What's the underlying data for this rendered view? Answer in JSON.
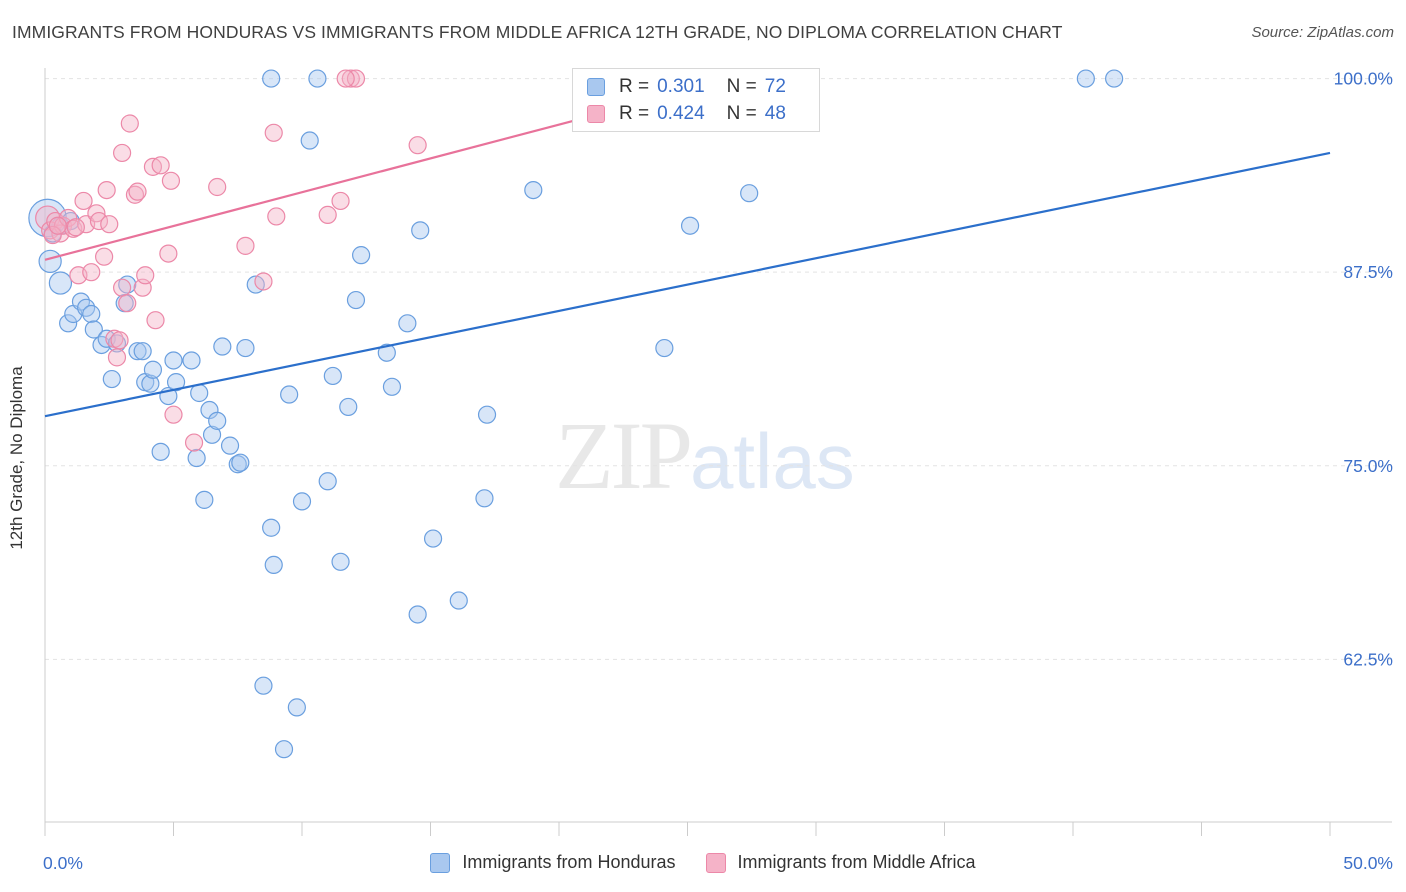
{
  "header": {
    "title": "IMMIGRANTS FROM HONDURAS VS IMMIGRANTS FROM MIDDLE AFRICA 12TH GRADE, NO DIPLOMA CORRELATION CHART",
    "source": "Source: ZipAtlas.com"
  },
  "watermark": {
    "zip": "ZIP",
    "atlas": "atlas"
  },
  "legend_top": {
    "rows": [
      {
        "r_label": "R =",
        "r_value": "0.301",
        "n_label": "N =",
        "n_value": "72"
      },
      {
        "r_label": "R =",
        "r_value": "0.424",
        "n_label": "N =",
        "n_value": "48"
      }
    ]
  },
  "colors": {
    "honduras_fill": "#a9c8ef",
    "honduras_stroke": "#6a9fdf",
    "honduras_line": "#2b6fcb",
    "africa_fill": "#f5b3c8",
    "africa_stroke": "#ec88a8",
    "africa_line": "#e8729a",
    "tick_text": "#3c6fc9",
    "grid": "#e3e3e3"
  },
  "chart_data": {
    "type": "scatter",
    "xlabel": "",
    "ylabel": "12th Grade, No Diploma",
    "xlim": [
      0,
      50
    ],
    "ylim": [
      52,
      101.2
    ],
    "x_ticks": [
      0,
      5,
      10,
      15,
      20,
      25,
      30,
      35,
      40,
      45,
      50
    ],
    "x_tick_labels": [
      {
        "value": 0,
        "label": "0.0%"
      },
      {
        "value": 50,
        "label": "50.0%"
      }
    ],
    "y_ticks": [
      {
        "value": 100,
        "label": "100.0%"
      },
      {
        "value": 87.5,
        "label": "87.5%"
      },
      {
        "value": 75,
        "label": "75.0%"
      },
      {
        "value": 62.5,
        "label": "62.5%"
      }
    ],
    "grid": "horizontal dashed",
    "legend": "bottom-center",
    "series": [
      {
        "name": "Immigrants from Honduras",
        "r": 0.301,
        "n": 72,
        "trend": {
          "x": [
            0,
            50
          ],
          "y": [
            78.2,
            95.2
          ]
        },
        "points": [
          [
            0.1,
            91.0,
            2.2
          ],
          [
            0.2,
            88.2,
            1.3
          ],
          [
            0.6,
            86.8,
            1.3
          ],
          [
            0.9,
            84.2,
            1.0
          ],
          [
            1.1,
            84.8,
            1.0
          ],
          [
            1.4,
            85.6,
            1.0
          ],
          [
            1.6,
            85.2,
            1.0
          ],
          [
            1.8,
            84.8,
            1.0
          ],
          [
            1.9,
            83.8,
            1.0
          ],
          [
            2.2,
            82.8,
            1.0
          ],
          [
            2.4,
            83.2,
            1.0
          ],
          [
            2.6,
            80.6,
            1.0
          ],
          [
            2.8,
            82.9,
            1.0
          ],
          [
            3.1,
            85.5,
            1.0
          ],
          [
            3.2,
            86.7,
            1.0
          ],
          [
            3.6,
            82.4,
            1.0
          ],
          [
            3.8,
            82.4,
            1.0
          ],
          [
            3.9,
            80.4,
            1.0
          ],
          [
            4.1,
            80.3,
            1.0
          ],
          [
            4.2,
            81.2,
            1.0
          ],
          [
            4.5,
            75.9,
            1.0
          ],
          [
            4.8,
            79.5,
            1.0
          ],
          [
            5.0,
            81.8,
            1.0
          ],
          [
            5.1,
            80.4,
            1.0
          ],
          [
            5.7,
            81.8,
            1.0
          ],
          [
            5.9,
            75.5,
            1.0
          ],
          [
            6.0,
            79.7,
            1.0
          ],
          [
            6.2,
            72.8,
            1.0
          ],
          [
            6.4,
            78.6,
            1.0
          ],
          [
            6.5,
            77.0,
            1.0
          ],
          [
            6.7,
            77.9,
            1.0
          ],
          [
            6.9,
            82.7,
            1.0
          ],
          [
            7.2,
            76.3,
            1.0
          ],
          [
            7.5,
            75.1,
            1.0
          ],
          [
            7.6,
            75.2,
            1.0
          ],
          [
            7.8,
            82.6,
            1.0
          ],
          [
            8.2,
            86.7,
            1.0
          ],
          [
            8.5,
            60.8,
            1.0
          ],
          [
            8.8,
            71.0,
            1.0
          ],
          [
            8.9,
            68.6,
            1.0
          ],
          [
            9.3,
            56.7,
            1.0
          ],
          [
            9.5,
            79.6,
            1.0
          ],
          [
            9.8,
            59.4,
            1.0
          ],
          [
            10.0,
            72.7,
            1.0
          ],
          [
            10.3,
            96.0,
            1.0
          ],
          [
            11.0,
            74.0,
            1.0
          ],
          [
            11.2,
            80.8,
            1.0
          ],
          [
            11.5,
            68.8,
            1.0
          ],
          [
            11.8,
            78.8,
            1.0
          ],
          [
            12.1,
            85.7,
            1.0
          ],
          [
            12.3,
            88.6,
            1.0
          ],
          [
            13.3,
            82.3,
            1.0
          ],
          [
            13.5,
            80.1,
            1.0
          ],
          [
            14.1,
            84.2,
            1.0
          ],
          [
            14.5,
            65.4,
            1.0
          ],
          [
            14.6,
            90.2,
            1.0
          ],
          [
            15.1,
            70.3,
            1.0
          ],
          [
            16.1,
            66.3,
            1.0
          ],
          [
            17.1,
            72.9,
            1.0
          ],
          [
            17.2,
            78.3,
            1.0
          ],
          [
            19.0,
            92.8,
            1.0
          ],
          [
            24.1,
            82.6,
            1.0
          ],
          [
            25.1,
            90.5,
            1.0
          ],
          [
            27.4,
            92.6,
            1.0
          ],
          [
            8.8,
            100.0,
            1.0
          ],
          [
            10.6,
            100.0,
            1.0
          ],
          [
            24.6,
            100.0,
            1.0
          ],
          [
            40.5,
            100.0,
            1.0
          ],
          [
            41.6,
            100.0,
            1.0
          ],
          [
            0.6,
            90.5,
            1.0
          ],
          [
            1.0,
            90.8,
            1.0
          ],
          [
            0.3,
            90.0,
            1.0
          ]
        ]
      },
      {
        "name": "Immigrants from Middle Africa",
        "r": 0.424,
        "n": 48,
        "trend": {
          "x": [
            0,
            27.5
          ],
          "y": [
            88.3,
            100.3
          ]
        },
        "points": [
          [
            0.1,
            91.0,
            1.4
          ],
          [
            0.2,
            90.2,
            1.0
          ],
          [
            0.4,
            90.8,
            1.0
          ],
          [
            0.6,
            90.0,
            1.0
          ],
          [
            0.7,
            90.5,
            1.0
          ],
          [
            0.9,
            91.0,
            1.0
          ],
          [
            1.1,
            90.3,
            1.0
          ],
          [
            1.3,
            87.3,
            1.0
          ],
          [
            1.5,
            92.1,
            1.0
          ],
          [
            1.6,
            90.6,
            1.0
          ],
          [
            1.8,
            87.5,
            1.0
          ],
          [
            2.0,
            91.3,
            1.0
          ],
          [
            2.1,
            90.8,
            1.0
          ],
          [
            2.3,
            88.5,
            1.0
          ],
          [
            2.4,
            92.8,
            1.0
          ],
          [
            2.5,
            90.6,
            1.0
          ],
          [
            2.7,
            83.2,
            1.0
          ],
          [
            2.8,
            82.0,
            1.0
          ],
          [
            3.0,
            95.2,
            1.0
          ],
          [
            3.0,
            86.5,
            1.0
          ],
          [
            3.2,
            85.5,
            1.0
          ],
          [
            3.3,
            97.1,
            1.0
          ],
          [
            3.5,
            92.5,
            1.0
          ],
          [
            3.6,
            92.7,
            1.0
          ],
          [
            3.8,
            86.5,
            1.0
          ],
          [
            3.9,
            87.3,
            1.0
          ],
          [
            4.2,
            94.3,
            1.0
          ],
          [
            4.3,
            84.4,
            1.0
          ],
          [
            4.5,
            94.4,
            1.0
          ],
          [
            4.8,
            88.7,
            1.0
          ],
          [
            4.9,
            93.4,
            1.0
          ],
          [
            5.0,
            78.3,
            1.0
          ],
          [
            5.8,
            76.5,
            1.0
          ],
          [
            6.7,
            93.0,
            1.0
          ],
          [
            7.8,
            89.2,
            1.0
          ],
          [
            8.5,
            86.9,
            1.0
          ],
          [
            8.9,
            96.5,
            1.0
          ],
          [
            9.0,
            91.1,
            1.0
          ],
          [
            11.0,
            91.2,
            1.0
          ],
          [
            11.5,
            92.1,
            1.0
          ],
          [
            11.9,
            100.0,
            1.0
          ],
          [
            12.1,
            100.0,
            1.0
          ],
          [
            14.5,
            95.7,
            1.0
          ],
          [
            0.3,
            89.9,
            1.0
          ],
          [
            0.5,
            90.5,
            1.0
          ],
          [
            1.2,
            90.4,
            1.0
          ],
          [
            2.9,
            83.1,
            1.0
          ],
          [
            11.7,
            100.0,
            1.0
          ]
        ]
      }
    ]
  },
  "legend_bottom": {
    "items": [
      {
        "label": "Immigrants from Honduras"
      },
      {
        "label": "Immigrants from Middle Africa"
      }
    ]
  }
}
